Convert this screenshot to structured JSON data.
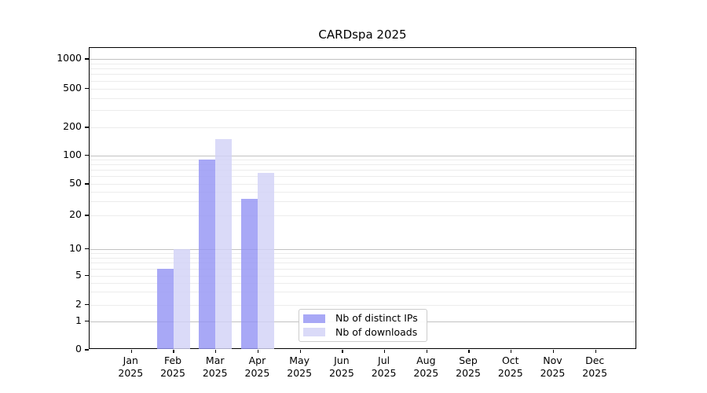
{
  "title": "CARDspa 2025",
  "chart_data": {
    "type": "bar",
    "title": "CARDspa 2025",
    "year_label": "2025",
    "categories": [
      "Jan",
      "Feb",
      "Mar",
      "Apr",
      "May",
      "Jun",
      "Jul",
      "Aug",
      "Sep",
      "Oct",
      "Nov",
      "Dec"
    ],
    "series": [
      {
        "name": "Nb of distinct IPs",
        "color": "#9595f4",
        "values": [
          0,
          6,
          90,
          32,
          0,
          0,
          0,
          0,
          0,
          0,
          0,
          0
        ]
      },
      {
        "name": "Nb of downloads",
        "color": "#d2d2f6",
        "values": [
          0,
          10,
          150,
          65,
          0,
          0,
          0,
          0,
          0,
          0,
          0,
          0
        ]
      }
    ],
    "y_ticks": [
      0,
      1,
      2,
      5,
      10,
      20,
      50,
      100,
      200,
      500,
      1000
    ],
    "y_scale": "log-with-zero-baseline",
    "ylim": [
      0,
      1300
    ],
    "xlabel": "",
    "ylabel": "",
    "grid": true,
    "legend_position": "inside-bottom-center"
  }
}
